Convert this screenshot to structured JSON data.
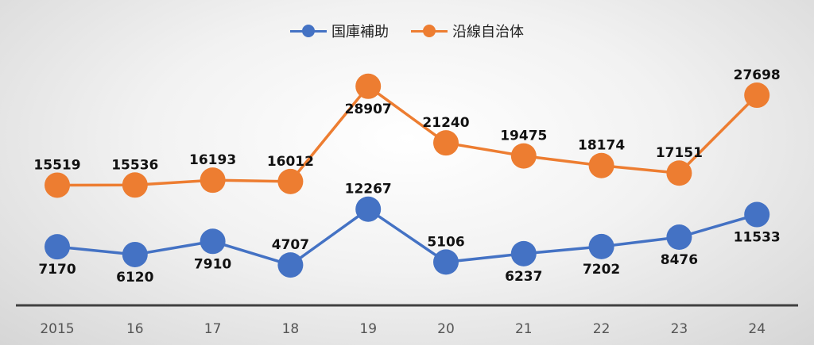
{
  "chart_data": {
    "type": "line",
    "categories": [
      "2015",
      "16",
      "17",
      "18",
      "19",
      "20",
      "21",
      "22",
      "23",
      "24"
    ],
    "series": [
      {
        "name": "国庫補助",
        "color": "#4472c4",
        "values": [
          7170,
          6120,
          7910,
          4707,
          12267,
          5106,
          6237,
          7202,
          8476,
          11533
        ],
        "label_pos": [
          "below",
          "below",
          "below",
          "above",
          "above",
          "above",
          "below",
          "below",
          "below",
          "below"
        ]
      },
      {
        "name": "沿線自治体",
        "color": "#ed7d31",
        "values": [
          15519,
          15536,
          16193,
          16012,
          28907,
          21240,
          19475,
          18174,
          17151,
          27698
        ],
        "label_pos": [
          "above",
          "above",
          "above",
          "above",
          "below",
          "above",
          "above",
          "above",
          "above",
          "above"
        ]
      }
    ],
    "title": "",
    "xlabel": "",
    "ylabel": "",
    "ylim": [
      3000,
      32000
    ],
    "legend_position": "top-center",
    "grid": false,
    "axis_color": "#404040"
  }
}
